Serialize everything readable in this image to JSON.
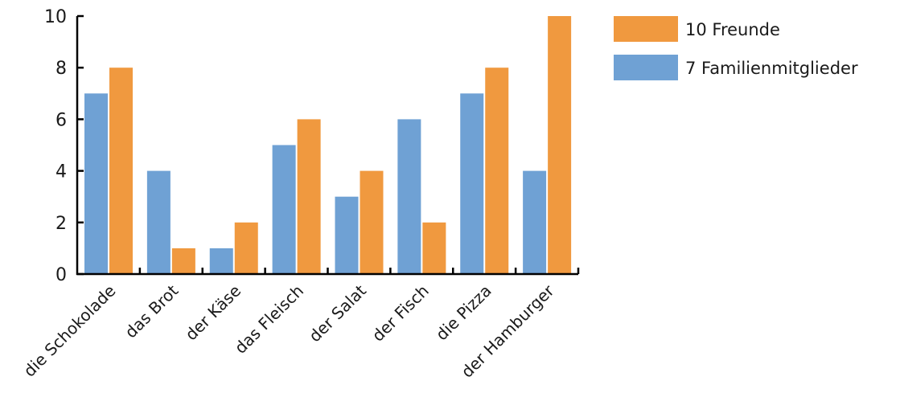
{
  "chart_data": {
    "type": "bar",
    "categories": [
      "die Schokolade",
      "das Brot",
      "der Käse",
      "das Fleisch",
      "der Salat",
      "der Fisch",
      "die Pizza",
      "der Hamburger"
    ],
    "series": [
      {
        "name": "7 Familienmitglieder",
        "color": "#6fa1d4",
        "values": [
          7,
          4,
          1,
          5,
          3,
          6,
          7,
          4
        ]
      },
      {
        "name": "10 Freunde",
        "color": "#f0993f",
        "values": [
          8,
          1,
          2,
          6,
          4,
          2,
          8,
          10
        ]
      }
    ],
    "yticks": [
      "0",
      "2",
      "4",
      "6",
      "8",
      "10"
    ],
    "ylim": [
      0,
      10
    ],
    "legend": [
      "10 Freunde",
      "7 Familienmitglieder"
    ],
    "legend_position": "top-right"
  }
}
